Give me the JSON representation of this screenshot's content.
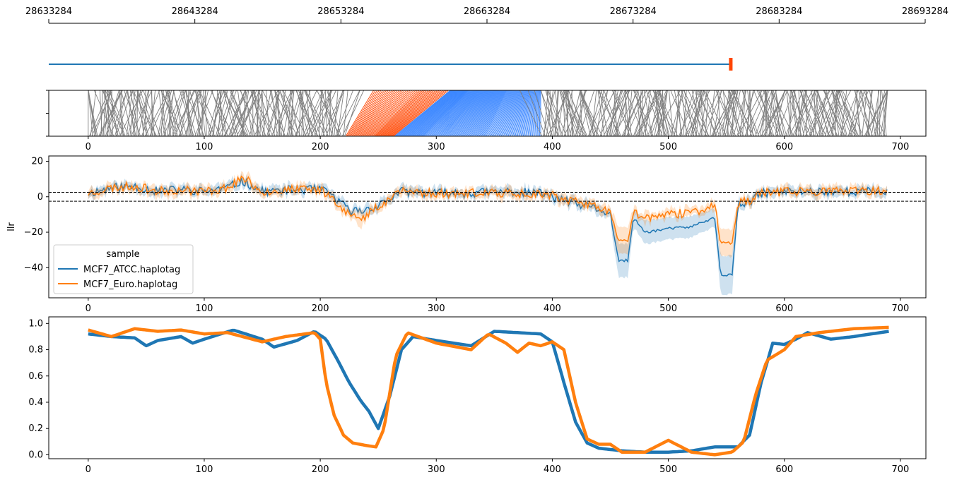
{
  "colors": {
    "grey": "#808080",
    "red": "#ff4500",
    "blue": "#3a86ff",
    "atcc": "#1f77b4",
    "euro": "#ff7f0e",
    "axis": "#000000"
  },
  "chart_data": [
    {
      "type": "line",
      "panel": "genomic coordinate track",
      "x_ticks": [
        "28633284",
        "28643284",
        "28653284",
        "28663284",
        "28673284",
        "28683284",
        "28693284"
      ],
      "xlim": [
        28633284,
        28693284
      ],
      "track_span": [
        28633284,
        28679950
      ],
      "track_end_marker": 28679950
    },
    {
      "type": "line",
      "panel": "CpG position mapping",
      "x_ticks": [
        "0",
        "100",
        "200",
        "300",
        "400",
        "500",
        "600",
        "700"
      ],
      "xlim": [
        -34,
        722
      ],
      "n_sites": 689,
      "highlight_red_index_range": [
        222,
        312
      ],
      "highlight_blue_index_range": [
        264,
        390
      ]
    },
    {
      "type": "line",
      "panel": "log-likelihood ratio",
      "ylabel": "llr",
      "ylim": [
        -57,
        23
      ],
      "y_ticks": [
        "20",
        "0",
        "−20",
        "−40"
      ],
      "x_ticks": [
        "0",
        "100",
        "200",
        "300",
        "400",
        "500",
        "600",
        "700"
      ],
      "xlim": [
        -34,
        722
      ],
      "threshold_lines": [
        2.5,
        -2.5
      ],
      "legend": {
        "title": "sample",
        "placement": "lower-left",
        "entries": [
          "MCF7_ATCC.haplotag",
          "MCF7_Euro.haplotag"
        ]
      },
      "series": [
        {
          "name": "MCF7_ATCC.haplotag",
          "x": [
            0,
            20,
            40,
            60,
            80,
            100,
            120,
            133,
            150,
            180,
            200,
            210,
            225,
            235,
            250,
            270,
            300,
            330,
            360,
            390,
            410,
            420,
            440,
            450,
            457,
            465,
            470,
            480,
            500,
            520,
            530,
            540,
            545,
            555,
            560,
            570,
            580,
            600,
            630,
            660,
            690
          ],
          "values": [
            2,
            5,
            6,
            3,
            4,
            3,
            5,
            9,
            3,
            4,
            4,
            1,
            -8,
            -8,
            -5,
            3,
            2,
            2,
            3,
            2,
            -2,
            -4,
            -7,
            -10,
            -36,
            -36,
            -12,
            -20,
            -18,
            -17,
            -14,
            -12,
            -44,
            -44,
            -5,
            -3,
            2,
            3,
            3,
            3,
            3
          ]
        },
        {
          "name": "MCF7_Euro.haplotag",
          "x": [
            0,
            20,
            40,
            60,
            80,
            100,
            120,
            133,
            150,
            180,
            200,
            210,
            225,
            235,
            250,
            270,
            300,
            330,
            360,
            390,
            410,
            420,
            440,
            450,
            457,
            465,
            470,
            480,
            500,
            520,
            530,
            540,
            545,
            555,
            560,
            570,
            580,
            600,
            630,
            660,
            690
          ],
          "values": [
            2,
            5,
            6,
            3,
            4,
            3,
            5,
            11,
            3,
            4,
            4,
            0,
            -10,
            -13,
            -5,
            3,
            2,
            2,
            2,
            2,
            -1,
            -3,
            -6,
            -8,
            -25,
            -25,
            -8,
            -12,
            -10,
            -9,
            -7,
            -5,
            -26,
            -26,
            -4,
            -2,
            2,
            3,
            3,
            3,
            3
          ]
        }
      ]
    },
    {
      "type": "line",
      "panel": "smoothed methylation rate",
      "ylim": [
        -0.03,
        1.05
      ],
      "y_ticks": [
        "1.0",
        "0.8",
        "0.6",
        "0.4",
        "0.2",
        "0.0"
      ],
      "x_ticks": [
        "0",
        "100",
        "200",
        "300",
        "400",
        "500",
        "600",
        "700"
      ],
      "xlim": [
        -34,
        722
      ],
      "series": [
        {
          "name": "MCF7_ATCC.haplotag",
          "x": [
            0,
            20,
            40,
            50,
            60,
            80,
            90,
            100,
            125,
            150,
            160,
            180,
            195,
            205,
            215,
            225,
            235,
            242,
            250,
            260,
            270,
            280,
            300,
            330,
            350,
            370,
            390,
            400,
            410,
            420,
            430,
            440,
            460,
            480,
            500,
            520,
            540,
            560,
            570,
            580,
            590,
            600,
            610,
            620,
            640,
            660,
            690
          ],
          "values": [
            0.92,
            0.9,
            0.89,
            0.83,
            0.87,
            0.9,
            0.85,
            0.88,
            0.95,
            0.88,
            0.82,
            0.87,
            0.94,
            0.88,
            0.72,
            0.55,
            0.41,
            0.33,
            0.2,
            0.45,
            0.8,
            0.9,
            0.87,
            0.83,
            0.94,
            0.93,
            0.92,
            0.86,
            0.55,
            0.25,
            0.09,
            0.05,
            0.03,
            0.02,
            0.02,
            0.03,
            0.06,
            0.06,
            0.15,
            0.55,
            0.85,
            0.84,
            0.88,
            0.93,
            0.88,
            0.9,
            0.94
          ]
        },
        {
          "name": "MCF7_Euro.haplotag",
          "x": [
            0,
            20,
            40,
            60,
            80,
            100,
            120,
            150,
            170,
            195,
            200,
            205,
            212,
            220,
            228,
            240,
            248,
            255,
            265,
            275,
            300,
            330,
            345,
            360,
            370,
            380,
            390,
            400,
            410,
            420,
            430,
            440,
            450,
            460,
            480,
            500,
            520,
            540,
            555,
            565,
            575,
            585,
            600,
            610,
            630,
            660,
            690
          ],
          "values": [
            0.95,
            0.9,
            0.96,
            0.94,
            0.95,
            0.92,
            0.93,
            0.86,
            0.9,
            0.93,
            0.88,
            0.55,
            0.3,
            0.15,
            0.09,
            0.07,
            0.06,
            0.2,
            0.75,
            0.93,
            0.85,
            0.8,
            0.92,
            0.85,
            0.78,
            0.85,
            0.83,
            0.86,
            0.8,
            0.4,
            0.12,
            0.08,
            0.08,
            0.02,
            0.02,
            0.11,
            0.02,
            0.0,
            0.02,
            0.1,
            0.45,
            0.72,
            0.8,
            0.9,
            0.93,
            0.96,
            0.97
          ]
        }
      ]
    }
  ]
}
